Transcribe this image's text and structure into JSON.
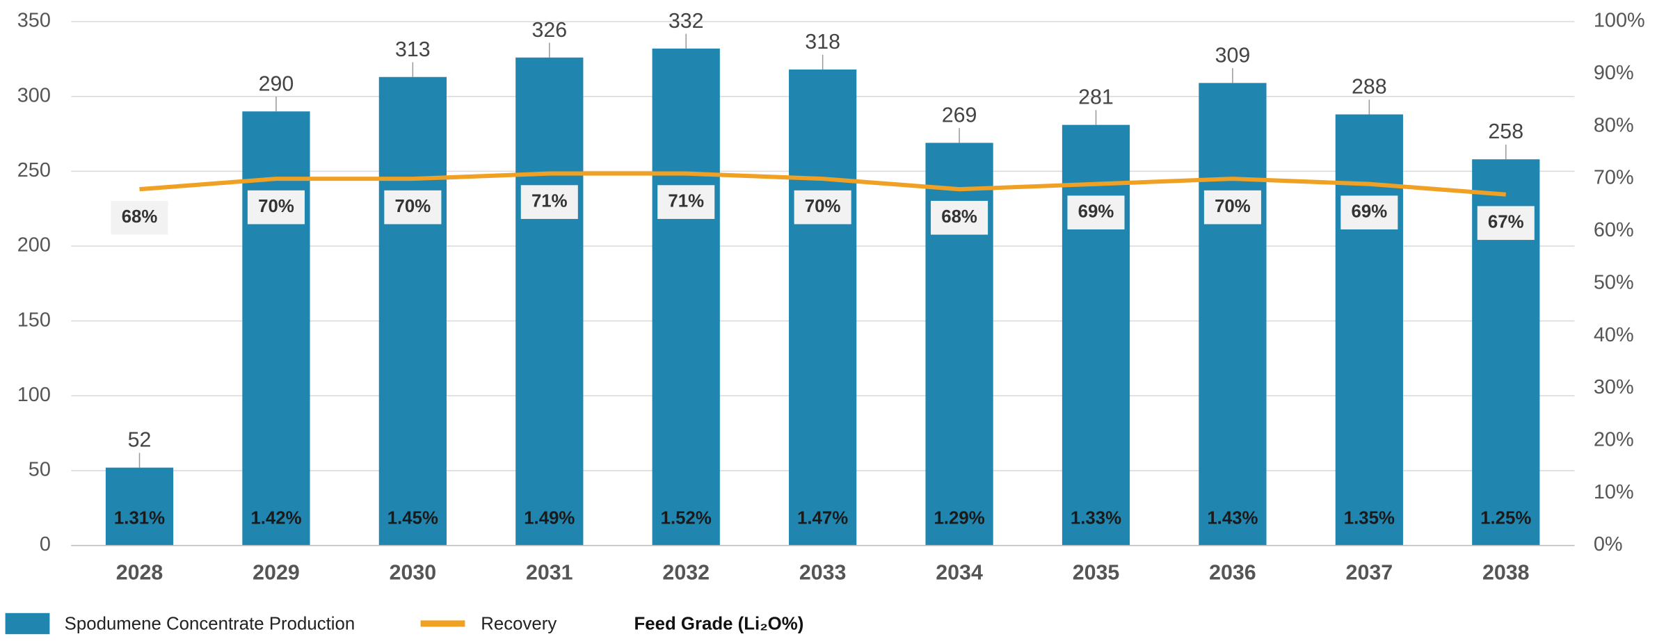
{
  "chart_data": {
    "type": "bar-line",
    "categories": [
      "2028",
      "2029",
      "2030",
      "2031",
      "2032",
      "2033",
      "2034",
      "2035",
      "2036",
      "2037",
      "2038"
    ],
    "series": [
      {
        "name": "Spodumene Concentrate Production",
        "type": "bar",
        "color": "#2086b0",
        "values": [
          52,
          290,
          313,
          326,
          332,
          318,
          269,
          281,
          309,
          288,
          258
        ]
      },
      {
        "name": "Recovery",
        "type": "line",
        "axis": "y2",
        "color": "#f0a023",
        "values": [
          68,
          70,
          70,
          71,
          71,
          70,
          68,
          69,
          70,
          69,
          67
        ],
        "value_labels": [
          "68%",
          "70%",
          "70%",
          "71%",
          "71%",
          "70%",
          "68%",
          "69%",
          "70%",
          "69%",
          "67%"
        ]
      },
      {
        "name": "Feed Grade (Li₂O%)",
        "type": "label",
        "values": [
          1.31,
          1.42,
          1.45,
          1.49,
          1.52,
          1.47,
          1.29,
          1.33,
          1.43,
          1.35,
          1.25
        ],
        "value_labels": [
          "1.31%",
          "1.42%",
          "1.45%",
          "1.49%",
          "1.52%",
          "1.47%",
          "1.29%",
          "1.33%",
          "1.43%",
          "1.35%",
          "1.25%"
        ]
      }
    ],
    "ylim": [
      0,
      350
    ],
    "yticks": [
      0,
      50,
      100,
      150,
      200,
      250,
      300,
      350
    ],
    "y2lim": [
      0,
      100
    ],
    "y2ticks": [
      {
        "value": 0,
        "label": "0%"
      },
      {
        "value": 10,
        "label": "10%"
      },
      {
        "value": 20,
        "label": "20%"
      },
      {
        "value": 30,
        "label": "30%"
      },
      {
        "value": 40,
        "label": "40%"
      },
      {
        "value": 50,
        "label": "50%"
      },
      {
        "value": 60,
        "label": "60%"
      },
      {
        "value": 70,
        "label": "70%"
      },
      {
        "value": 80,
        "label": "80%"
      },
      {
        "value": 90,
        "label": "90%"
      },
      {
        "value": 100,
        "label": "100%"
      }
    ],
    "grid": true
  }
}
